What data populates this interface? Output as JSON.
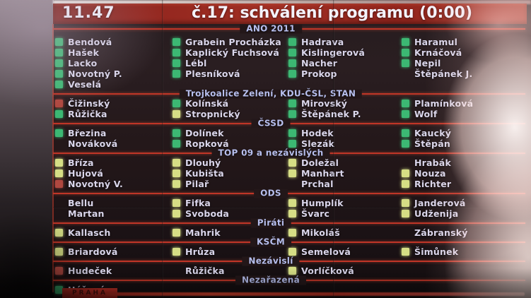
{
  "header": {
    "time": "11.47",
    "title": "č.17: schválení programu (0:00)"
  },
  "footer": {
    "logo": "PRAHA"
  },
  "colors": {
    "green": "#3cb873",
    "yellow": "#d6de85",
    "red": "#b04840"
  },
  "bands": [
    {
      "party": "ANO 2011",
      "columns": [
        [
          {
            "name": "Bendová",
            "vote": "green"
          },
          {
            "name": "Hašek",
            "vote": "green"
          },
          {
            "name": "Lacko",
            "vote": "green"
          },
          {
            "name": "Novotný P.",
            "vote": "green"
          },
          {
            "name": "Veselá",
            "vote": "green"
          }
        ],
        [
          {
            "name": "Grabein Procházka",
            "vote": "green"
          },
          {
            "name": "Kaplický Fuchsová",
            "vote": "green"
          },
          {
            "name": "Lébl",
            "vote": "green"
          },
          {
            "name": "Plesníková",
            "vote": "green"
          }
        ],
        [
          {
            "name": "Hadrava",
            "vote": "green"
          },
          {
            "name": "Kislingerová",
            "vote": "green"
          },
          {
            "name": "Nacher",
            "vote": "green"
          },
          {
            "name": "Prokop",
            "vote": "green"
          }
        ],
        [
          {
            "name": "Haramul",
            "vote": "green"
          },
          {
            "name": "Krnáčová",
            "vote": "green"
          },
          {
            "name": "Nepil",
            "vote": "green"
          },
          {
            "name": "Štěpánek J.",
            "vote": "none"
          }
        ]
      ]
    },
    {
      "party": "Trojkoalice Zelení, KDU-ČSL, STAN",
      "columns": [
        [
          {
            "name": "Čižinský",
            "vote": "red"
          },
          {
            "name": "Růžička",
            "vote": "green"
          }
        ],
        [
          {
            "name": "Kolínská",
            "vote": "green"
          },
          {
            "name": "Stropnický",
            "vote": "yellow"
          }
        ],
        [
          {
            "name": "Mirovský",
            "vote": "green"
          },
          {
            "name": "Štěpánek P.",
            "vote": "green"
          }
        ],
        [
          {
            "name": "Plamínková",
            "vote": "green"
          },
          {
            "name": "Wolf",
            "vote": "green"
          }
        ]
      ]
    },
    {
      "party": "ČSSD",
      "columns": [
        [
          {
            "name": "Březina",
            "vote": "green"
          },
          {
            "name": "Nováková",
            "vote": "none"
          }
        ],
        [
          {
            "name": "Dolínek",
            "vote": "green"
          },
          {
            "name": "Ropková",
            "vote": "green"
          }
        ],
        [
          {
            "name": "Hodek",
            "vote": "green"
          },
          {
            "name": "Slezák",
            "vote": "green"
          }
        ],
        [
          {
            "name": "Kaucký",
            "vote": "green"
          },
          {
            "name": "Štěpán",
            "vote": "green"
          }
        ]
      ]
    },
    {
      "party": "TOP 09 a nezávislých",
      "columns": [
        [
          {
            "name": "Bříza",
            "vote": "yellow"
          },
          {
            "name": "Hujová",
            "vote": "yellow"
          },
          {
            "name": "Novotný V.",
            "vote": "red"
          }
        ],
        [
          {
            "name": "Dlouhý",
            "vote": "yellow"
          },
          {
            "name": "Kubišta",
            "vote": "yellow"
          },
          {
            "name": "Pilař",
            "vote": "yellow"
          }
        ],
        [
          {
            "name": "Doležal",
            "vote": "yellow"
          },
          {
            "name": "Manhart",
            "vote": "yellow"
          },
          {
            "name": "Prchal",
            "vote": "none"
          }
        ],
        [
          {
            "name": "Hrabák",
            "vote": "none"
          },
          {
            "name": "Nouza",
            "vote": "yellow"
          },
          {
            "name": "Richter",
            "vote": "yellow"
          }
        ]
      ]
    },
    {
      "party": "ODS",
      "columns": [
        [
          {
            "name": "Bellu",
            "vote": "none"
          },
          {
            "name": "Martan",
            "vote": "none"
          }
        ],
        [
          {
            "name": "Fifka",
            "vote": "yellow"
          },
          {
            "name": "Svoboda",
            "vote": "yellow"
          }
        ],
        [
          {
            "name": "Humplík",
            "vote": "yellow"
          },
          {
            "name": "Švarc",
            "vote": "yellow"
          }
        ],
        [
          {
            "name": "Janderová",
            "vote": "yellow"
          },
          {
            "name": "Udženija",
            "vote": "yellow"
          }
        ]
      ]
    },
    {
      "party": "Piráti",
      "columns": [
        [
          {
            "name": "Kallasch",
            "vote": "yellow"
          }
        ],
        [
          {
            "name": "Mahrik",
            "vote": "yellow"
          }
        ],
        [
          {
            "name": "Mikoláš",
            "vote": "yellow"
          }
        ],
        [
          {
            "name": "Zábranský",
            "vote": "none"
          }
        ]
      ]
    },
    {
      "party": "KSČM",
      "columns": [
        [
          {
            "name": "Briardová",
            "vote": "yellow"
          }
        ],
        [
          {
            "name": "Hrůza",
            "vote": "yellow"
          }
        ],
        [
          {
            "name": "Semelová",
            "vote": "yellow"
          }
        ],
        [
          {
            "name": "Šimůnek",
            "vote": "yellow"
          }
        ]
      ]
    },
    {
      "party": "Nezávislí",
      "columns": [
        [
          {
            "name": "Hudeček",
            "vote": "red"
          }
        ],
        [
          {
            "name": "Růžička",
            "vote": "none"
          }
        ],
        [
          {
            "name": "Vorlíčková",
            "vote": "yellow"
          }
        ],
        []
      ]
    },
    {
      "party": "Nezařazená",
      "columns": [
        [
          {
            "name": "Hášová",
            "vote": "green"
          }
        ],
        [],
        [],
        []
      ]
    }
  ]
}
